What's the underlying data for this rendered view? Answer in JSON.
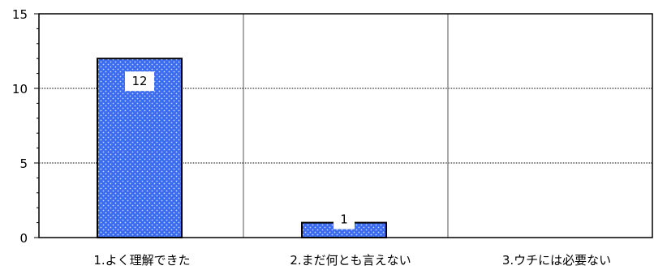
{
  "chart_data": {
    "type": "bar",
    "categories": [
      "1.よく理解できた",
      "2.まだ何とも言えない",
      "3.ウチには必要ない"
    ],
    "values": [
      12,
      1,
      0
    ],
    "data_labels": [
      "12",
      "1",
      ""
    ],
    "y_ticks": [
      "0",
      "5",
      "10",
      "15"
    ],
    "ylim": [
      0,
      15
    ],
    "grid": true,
    "bar_color": "#3b6cf0",
    "bar_dot_color": "#c8d8ff"
  }
}
